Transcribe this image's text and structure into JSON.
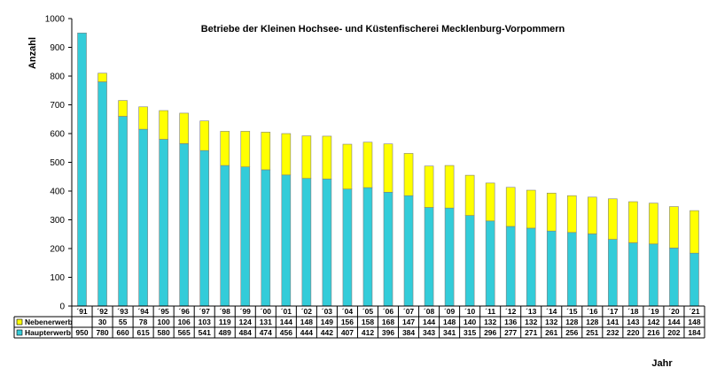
{
  "chart_data": {
    "type": "bar",
    "stacked": true,
    "title": "Betriebe der Kleinen Hochsee- und Küstenfischerei Mecklenburg-Vorpommern",
    "ylabel": "Anzahl",
    "xlabel": "Jahr",
    "ylim": [
      0,
      1000
    ],
    "yticks": [
      0,
      100,
      200,
      300,
      400,
      500,
      600,
      700,
      800,
      900,
      1000
    ],
    "grid": false,
    "legend": "data-table-below",
    "categories": [
      "´91",
      "´92",
      "´93",
      "´94",
      "´95",
      "´96",
      "´97",
      "´98",
      "´99",
      "´00",
      "´01",
      "´02",
      "´03",
      "´04",
      "´05",
      "´06",
      "´07",
      "´08",
      "´09",
      "´10",
      "´11",
      "´12",
      "´13",
      "´14",
      "´15",
      "´16",
      "´17",
      "´18",
      "´19",
      "´20",
      "´21"
    ],
    "series": [
      {
        "name": "Haupterwerb",
        "color": "#33ccd9",
        "values": [
          950,
          780,
          660,
          615,
          580,
          565,
          541,
          489,
          484,
          474,
          456,
          444,
          442,
          407,
          412,
          396,
          384,
          343,
          341,
          315,
          296,
          277,
          271,
          261,
          256,
          251,
          232,
          220,
          216,
          202,
          184
        ]
      },
      {
        "name": "Nebenerwerb",
        "color": "#ffff00",
        "values": [
          null,
          30,
          55,
          78,
          100,
          106,
          103,
          119,
          124,
          131,
          144,
          148,
          149,
          156,
          158,
          168,
          147,
          144,
          148,
          140,
          132,
          136,
          132,
          132,
          128,
          128,
          141,
          143,
          142,
          144,
          148
        ]
      }
    ]
  }
}
